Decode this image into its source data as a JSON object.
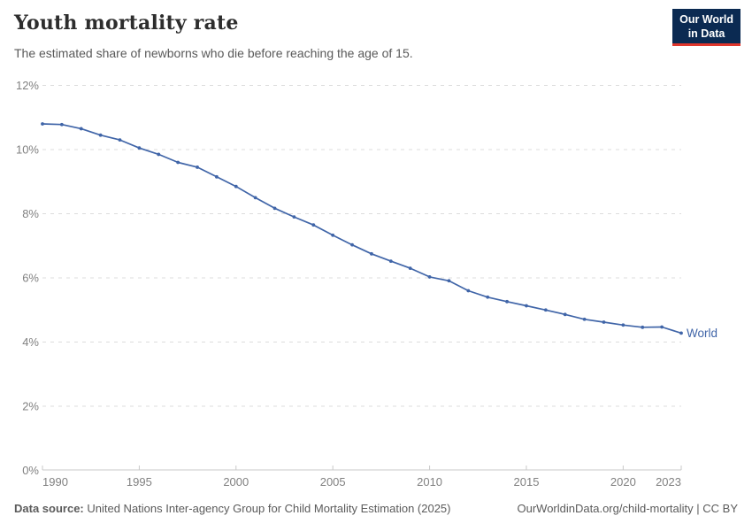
{
  "header": {
    "title": "Youth mortality rate",
    "subtitle": "The estimated share of newborns who die before reaching the age of 15.",
    "logo_line1": "Our World",
    "logo_line2": "in Data"
  },
  "footer": {
    "source_label": "Data source:",
    "source_text": " United Nations Inter-agency Group for Child Mortality Estimation (2025)",
    "link_text": "OurWorldinData.org/child-mortality | CC BY"
  },
  "colors": {
    "line": "#4065a8",
    "grid": "#dcdcdc",
    "axis": "#c9c9c9",
    "tick_label": "#818181",
    "background": "#ffffff",
    "logo_bg": "#0b2a52",
    "logo_accent": "#e0362c"
  },
  "chart_data": {
    "type": "line",
    "title": "Youth mortality rate",
    "xlabel": "",
    "ylabel": "",
    "xlim": [
      1990,
      2023
    ],
    "ylim": [
      0,
      12
    ],
    "grid": "horizontal-dashed",
    "legend": "end-of-line-label",
    "y_tick_values": [
      0,
      2,
      4,
      6,
      8,
      10,
      12
    ],
    "y_tick_labels": [
      "0%",
      "2%",
      "4%",
      "6%",
      "8%",
      "10%",
      "12%"
    ],
    "x_tick_values": [
      1990,
      1995,
      2000,
      2005,
      2010,
      2015,
      2020,
      2023
    ],
    "x_tick_labels": [
      "1990",
      "1995",
      "2000",
      "2005",
      "2010",
      "2015",
      "2020",
      "2023"
    ],
    "series": [
      {
        "name": "World",
        "x": [
          1990,
          1991,
          1992,
          1993,
          1994,
          1995,
          1996,
          1997,
          1998,
          1999,
          2000,
          2001,
          2002,
          2003,
          2004,
          2005,
          2006,
          2007,
          2008,
          2009,
          2010,
          2011,
          2012,
          2013,
          2014,
          2015,
          2016,
          2017,
          2018,
          2019,
          2020,
          2021,
          2022,
          2023
        ],
        "values": [
          10.8,
          10.78,
          10.65,
          10.45,
          10.3,
          10.05,
          9.85,
          9.6,
          9.45,
          9.15,
          8.85,
          8.5,
          8.17,
          7.9,
          7.65,
          7.33,
          7.03,
          6.75,
          6.52,
          6.3,
          6.03,
          5.91,
          5.6,
          5.4,
          5.26,
          5.13,
          5.0,
          4.86,
          4.71,
          4.62,
          4.53,
          4.46,
          4.47,
          4.28
        ]
      }
    ]
  }
}
